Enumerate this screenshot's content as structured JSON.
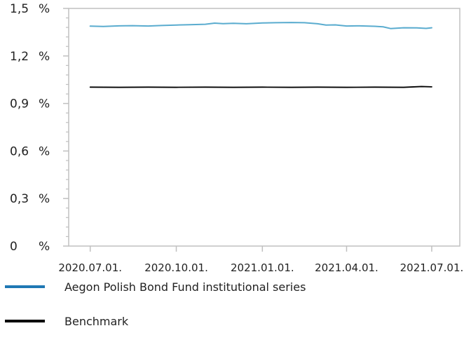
{
  "chart_data": {
    "type": "line",
    "title": "",
    "xlabel": "",
    "ylabel": "",
    "x_ticks": [
      "2020.07.01.",
      "2020.10.01.",
      "2021.01.01.",
      "2021.04.01.",
      "2021.07.01."
    ],
    "x_tick_values": [
      "2020-07-01",
      "2020-10-01",
      "2021-01-01",
      "2021-04-01",
      "2021-07-01"
    ],
    "xlim": [
      "2020-06-08",
      "2021-07-31"
    ],
    "y_ticks": [
      {
        "value": 0,
        "label": "0",
        "unit": "%"
      },
      {
        "value": 0.3,
        "label": "0,3",
        "unit": "%"
      },
      {
        "value": 0.6,
        "label": "0,6",
        "unit": "%"
      },
      {
        "value": 0.9,
        "label": "0,9",
        "unit": "%"
      },
      {
        "value": 1.2,
        "label": "1,2",
        "unit": "%"
      },
      {
        "value": 1.5,
        "label": "1,5",
        "unit": "%"
      }
    ],
    "ylim": [
      0,
      1.5
    ],
    "grid": false,
    "legend_position": "bottom",
    "series": [
      {
        "name": "Aegon Polish Bond Fund institutional series",
        "color": "#5aaccf",
        "legend_color": "#1f78b4",
        "points": [
          {
            "x": "2020-07-01",
            "y": 1.388
          },
          {
            "x": "2020-07-15",
            "y": 1.386
          },
          {
            "x": "2020-08-01",
            "y": 1.39
          },
          {
            "x": "2020-08-15",
            "y": 1.391
          },
          {
            "x": "2020-09-01",
            "y": 1.389
          },
          {
            "x": "2020-09-15",
            "y": 1.392
          },
          {
            "x": "2020-10-01",
            "y": 1.395
          },
          {
            "x": "2020-10-15",
            "y": 1.397
          },
          {
            "x": "2020-11-01",
            "y": 1.4
          },
          {
            "x": "2020-11-11",
            "y": 1.407
          },
          {
            "x": "2020-11-20",
            "y": 1.404
          },
          {
            "x": "2020-12-01",
            "y": 1.406
          },
          {
            "x": "2020-12-15",
            "y": 1.403
          },
          {
            "x": "2021-01-01",
            "y": 1.408
          },
          {
            "x": "2021-01-15",
            "y": 1.41
          },
          {
            "x": "2021-02-01",
            "y": 1.411
          },
          {
            "x": "2021-02-15",
            "y": 1.41
          },
          {
            "x": "2021-03-01",
            "y": 1.403
          },
          {
            "x": "2021-03-10",
            "y": 1.395
          },
          {
            "x": "2021-03-20",
            "y": 1.396
          },
          {
            "x": "2021-04-01",
            "y": 1.389
          },
          {
            "x": "2021-04-15",
            "y": 1.39
          },
          {
            "x": "2021-05-01",
            "y": 1.387
          },
          {
            "x": "2021-05-10",
            "y": 1.384
          },
          {
            "x": "2021-05-18",
            "y": 1.373
          },
          {
            "x": "2021-06-01",
            "y": 1.378
          },
          {
            "x": "2021-06-15",
            "y": 1.377
          },
          {
            "x": "2021-06-25",
            "y": 1.374
          },
          {
            "x": "2021-07-01",
            "y": 1.378
          }
        ]
      },
      {
        "name": "Benchmark",
        "color": "#000000",
        "legend_color": "#000000",
        "points": [
          {
            "x": "2020-07-01",
            "y": 1.003
          },
          {
            "x": "2020-08-01",
            "y": 1.002
          },
          {
            "x": "2020-09-01",
            "y": 1.003
          },
          {
            "x": "2020-10-01",
            "y": 1.002
          },
          {
            "x": "2020-11-01",
            "y": 1.003
          },
          {
            "x": "2020-12-01",
            "y": 1.002
          },
          {
            "x": "2021-01-01",
            "y": 1.003
          },
          {
            "x": "2021-02-01",
            "y": 1.002
          },
          {
            "x": "2021-03-01",
            "y": 1.003
          },
          {
            "x": "2021-04-01",
            "y": 1.002
          },
          {
            "x": "2021-05-01",
            "y": 1.003
          },
          {
            "x": "2021-06-01",
            "y": 1.002
          },
          {
            "x": "2021-06-20",
            "y": 1.007
          },
          {
            "x": "2021-07-01",
            "y": 1.005
          }
        ]
      }
    ]
  }
}
